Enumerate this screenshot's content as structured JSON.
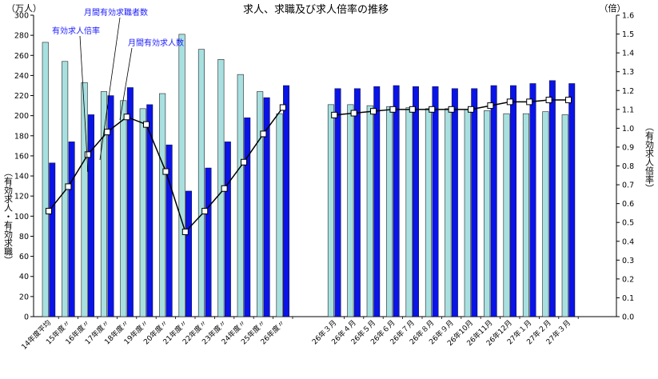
{
  "chart_data": {
    "type": "bar",
    "title": "求人、求職及び求人倍率の推移",
    "left_unit": "（万人）",
    "right_unit": "（倍）",
    "ylabel_left": "（有効求人・有効求職）",
    "ylabel_right": "（有効求人倍率）",
    "ylim_left": [
      0,
      300
    ],
    "ylim_right": [
      0,
      1.6
    ],
    "left_ticks": [
      0,
      20,
      40,
      60,
      80,
      100,
      120,
      140,
      160,
      180,
      200,
      220,
      240,
      260,
      280,
      300
    ],
    "right_ticks": [
      "0.0",
      "0.1",
      "0.2",
      "0.3",
      "0.4",
      "0.5",
      "0.6",
      "0.7",
      "0.8",
      "0.9",
      "1.0",
      "1.1",
      "1.2",
      "1.3",
      "1.4",
      "1.5",
      "1.6"
    ],
    "categories": [
      "14年度平均",
      "15年度〃",
      "16年度〃",
      "17年度〃",
      "18年度〃",
      "19年度〃",
      "20年度〃",
      "21年度〃",
      "22年度〃",
      "23年度〃",
      "24年度〃",
      "25年度〃",
      "26年度〃",
      "26年３月",
      "26年４月",
      "26年５月",
      "26年６月",
      "26年７月",
      "26年８月",
      "26年９月",
      "26年10月",
      "26年11月",
      "26年12月",
      "27年１月",
      "27年２月",
      "27年３月"
    ],
    "series": [
      {
        "name": "月間有効求職者数",
        "axis": "left",
        "color": "#a8e0e0",
        "values": [
          273,
          254,
          233,
          224,
          215,
          207,
          222,
          281,
          266,
          256,
          241,
          224,
          202,
          211,
          211,
          210,
          209,
          208,
          207,
          207,
          206,
          205,
          202,
          202,
          204,
          201
        ]
      },
      {
        "name": "月間有効求人数",
        "axis": "left",
        "color": "#0a14e6",
        "values": [
          153,
          174,
          201,
          220,
          228,
          211,
          171,
          125,
          148,
          174,
          198,
          218,
          230,
          227,
          227,
          229,
          230,
          229,
          229,
          227,
          227,
          230,
          230,
          232,
          235,
          232
        ]
      },
      {
        "name": "有効求人倍率",
        "axis": "right",
        "type": "line",
        "values": [
          0.56,
          0.69,
          0.86,
          0.98,
          1.06,
          1.02,
          0.77,
          0.45,
          0.56,
          0.68,
          0.82,
          0.97,
          1.11,
          1.07,
          1.08,
          1.09,
          1.1,
          1.1,
          1.1,
          1.1,
          1.1,
          1.12,
          1.14,
          1.14,
          1.15,
          1.15
        ]
      }
    ],
    "annotations": [
      "月間有効求職者数",
      "有効求人倍率",
      "月間有効求人数"
    ],
    "grid": false,
    "gap_after_index": 12
  }
}
